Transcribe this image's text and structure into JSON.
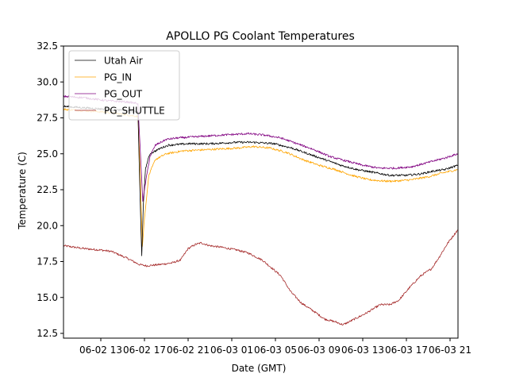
{
  "chart_data": {
    "type": "line",
    "title": "APOLLO PG Coolant Temperatures",
    "xlabel": "Date (GMT)",
    "ylabel": "Temperature (C)",
    "x_unit": "hours since 06-02 13:00 GMT",
    "xlim": [
      -3.4,
      32.7
    ],
    "ylim": [
      12.3,
      32.5
    ],
    "grid": false,
    "legend_position": "top-left",
    "xticks": [
      {
        "x": 0,
        "label": "06-02 13"
      },
      {
        "x": 4,
        "label": "06-02 17"
      },
      {
        "x": 8,
        "label": "06-02 21"
      },
      {
        "x": 12,
        "label": "06-03 01"
      },
      {
        "x": 16,
        "label": "06-03 05"
      },
      {
        "x": 20,
        "label": "06-03 09"
      },
      {
        "x": 24,
        "label": "06-03 13"
      },
      {
        "x": 28,
        "label": "06-03 17"
      },
      {
        "x": 32,
        "label": "06-03 21"
      }
    ],
    "yticks": [
      12.5,
      15.0,
      17.5,
      20.0,
      22.5,
      25.0,
      27.5,
      30.0,
      32.5
    ],
    "series": [
      {
        "name": "Utah Air",
        "color": "#000000",
        "points": [
          [
            -3.4,
            28.3
          ],
          [
            -1.5,
            28.2
          ],
          [
            0.5,
            28.1
          ],
          [
            2.5,
            28.0
          ],
          [
            3.4,
            27.9
          ],
          [
            3.6,
            22.0
          ],
          [
            3.75,
            17.9
          ],
          [
            3.9,
            21.5
          ],
          [
            4.1,
            24.0
          ],
          [
            4.5,
            25.0
          ],
          [
            5.5,
            25.4
          ],
          [
            6.2,
            25.6
          ],
          [
            8,
            25.7
          ],
          [
            10,
            25.7
          ],
          [
            12.5,
            25.8
          ],
          [
            14,
            25.8
          ],
          [
            15.9,
            25.7
          ],
          [
            17.5,
            25.4
          ],
          [
            19,
            25.0
          ],
          [
            20.5,
            24.6
          ],
          [
            22,
            24.2
          ],
          [
            23.5,
            23.9
          ],
          [
            25,
            23.7
          ],
          [
            26.5,
            23.5
          ],
          [
            28,
            23.5
          ],
          [
            29.3,
            23.6
          ],
          [
            30.5,
            23.8
          ],
          [
            31.5,
            23.9
          ],
          [
            32.7,
            24.2
          ]
        ]
      },
      {
        "name": "PG_IN",
        "color": "#FFA500",
        "points": [
          [
            -3.4,
            28.1
          ],
          [
            -1.5,
            28.0
          ],
          [
            0.5,
            27.9
          ],
          [
            2.5,
            27.7
          ],
          [
            3.4,
            27.6
          ],
          [
            3.6,
            24.0
          ],
          [
            3.8,
            18.5
          ],
          [
            4.0,
            20.5
          ],
          [
            4.4,
            23.5
          ],
          [
            5.0,
            24.6
          ],
          [
            6.0,
            25.0
          ],
          [
            7.5,
            25.2
          ],
          [
            10,
            25.3
          ],
          [
            12.5,
            25.4
          ],
          [
            14,
            25.5
          ],
          [
            15.5,
            25.4
          ],
          [
            17,
            25.1
          ],
          [
            18.5,
            24.6
          ],
          [
            20,
            24.2
          ],
          [
            21.5,
            23.9
          ],
          [
            23,
            23.5
          ],
          [
            24.5,
            23.2
          ],
          [
            26,
            23.1
          ],
          [
            27,
            23.1
          ],
          [
            28.5,
            23.2
          ],
          [
            30,
            23.4
          ],
          [
            31.5,
            23.7
          ],
          [
            32.7,
            23.9
          ]
        ]
      },
      {
        "name": "PG_OUT",
        "color": "#800080",
        "points": [
          [
            -3.4,
            29.0
          ],
          [
            -1.5,
            28.9
          ],
          [
            0.5,
            28.7
          ],
          [
            2.5,
            28.6
          ],
          [
            3.4,
            28.5
          ],
          [
            3.6,
            25.5
          ],
          [
            3.85,
            21.7
          ],
          [
            4.1,
            23.0
          ],
          [
            4.5,
            24.8
          ],
          [
            5.0,
            25.6
          ],
          [
            6.0,
            26.0
          ],
          [
            7.0,
            26.1
          ],
          [
            9,
            26.2
          ],
          [
            11,
            26.3
          ],
          [
            13.5,
            26.4
          ],
          [
            15,
            26.3
          ],
          [
            16.5,
            26.1
          ],
          [
            18,
            25.7
          ],
          [
            19.5,
            25.3
          ],
          [
            21,
            24.8
          ],
          [
            22.5,
            24.5
          ],
          [
            24,
            24.2
          ],
          [
            25.5,
            24.0
          ],
          [
            27,
            24.0
          ],
          [
            28.5,
            24.1
          ],
          [
            30,
            24.4
          ],
          [
            31.5,
            24.7
          ],
          [
            32.7,
            25.0
          ]
        ]
      },
      {
        "name": "PG_SHUTTLE",
        "color": "#A52A2A",
        "points": [
          [
            -3.4,
            18.6
          ],
          [
            -1.5,
            18.4
          ],
          [
            0,
            18.3
          ],
          [
            1.0,
            18.2
          ],
          [
            2.5,
            17.7
          ],
          [
            3.5,
            17.3
          ],
          [
            4.2,
            17.2
          ],
          [
            5.5,
            17.3
          ],
          [
            6.5,
            17.4
          ],
          [
            7.3,
            17.6
          ],
          [
            8.0,
            18.4
          ],
          [
            8.7,
            18.7
          ],
          [
            9.2,
            18.8
          ],
          [
            10,
            18.6
          ],
          [
            11,
            18.5
          ],
          [
            12.5,
            18.3
          ],
          [
            13.5,
            18.1
          ],
          [
            14.8,
            17.6
          ],
          [
            15.9,
            16.9
          ],
          [
            16.5,
            16.5
          ],
          [
            17.4,
            15.4
          ],
          [
            18.4,
            14.6
          ],
          [
            19.4,
            14.1
          ],
          [
            20.5,
            13.5
          ],
          [
            21.5,
            13.3
          ],
          [
            22.2,
            13.1
          ],
          [
            23,
            13.4
          ],
          [
            24.3,
            13.9
          ],
          [
            25.6,
            14.5
          ],
          [
            26.5,
            14.5
          ],
          [
            27.3,
            14.8
          ],
          [
            28.3,
            15.7
          ],
          [
            29.3,
            16.5
          ],
          [
            30.3,
            17.0
          ],
          [
            31.0,
            17.8
          ],
          [
            31.8,
            18.8
          ],
          [
            32.7,
            19.7
          ]
        ]
      }
    ]
  }
}
